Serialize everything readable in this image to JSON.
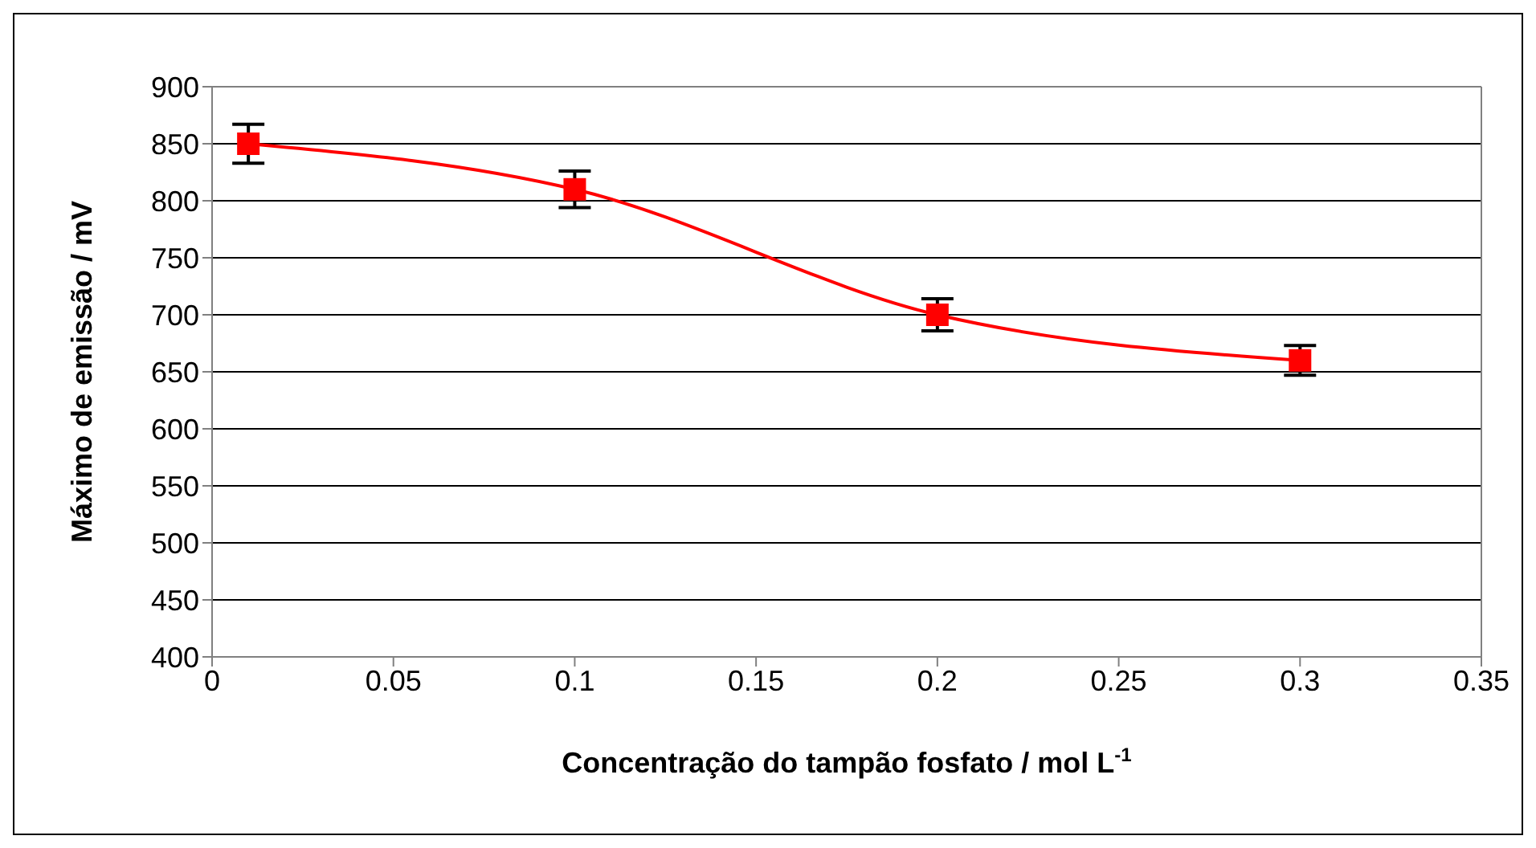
{
  "chart_data": {
    "type": "line",
    "xlabel": "Concentração do tampão fosfato / mol L$^{-1}$",
    "ylabel": "Máximo de emissão / mV",
    "x": [
      0.01,
      0.1,
      0.2,
      0.3
    ],
    "series": [
      {
        "color": "#ff0000",
        "values": [
          850,
          810,
          700,
          660
        ],
        "errors": [
          17,
          16,
          14,
          13
        ]
      }
    ],
    "xlim": [
      0,
      0.35
    ],
    "xticks": [
      0,
      0.05,
      0.1,
      0.15,
      0.2,
      0.25,
      0.3,
      0.35
    ],
    "ylim": [
      400,
      900
    ],
    "yticks": [
      400,
      450,
      500,
      550,
      600,
      650,
      700,
      750,
      800,
      850,
      900
    ],
    "grid": "y",
    "marker": "square",
    "line_style": "solid"
  }
}
